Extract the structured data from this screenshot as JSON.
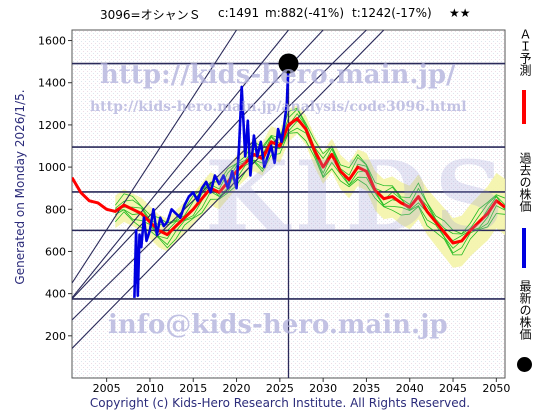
{
  "header": {
    "code": "3096=オシャンＳ",
    "current": "c:1491",
    "min": "m:882(-41%)",
    "target": "t:1242(-17%)",
    "rating": "★★"
  },
  "side_text": "Generated on Monday 2026/1/5.",
  "footer": "Copyright (c) Kids-Hero Research Institute. All Rights Reserved.",
  "watermarks": {
    "url_main": "http://kids-hero.main.jp/",
    "url_code": "http://kids-hero.main.jp/analysis/code3096.html",
    "email": "info@kids-hero.main.jp",
    "big": "KIDS"
  },
  "legend": {
    "ai": "ＡＩ予測",
    "past": "過去の株価",
    "latest": "最新の株価"
  },
  "colors": {
    "ai_line": "#ff0000",
    "price_line": "#0000e0",
    "band_fill": "#f4f4a8",
    "band_lines": "#22bb22",
    "grid": "#2a2a5a",
    "watermark": "#b8b8e0"
  },
  "chart_data": {
    "type": "line",
    "xlim": [
      2001,
      2051
    ],
    "ylim": [
      0,
      1650
    ],
    "x_ticks": [
      2005,
      2010,
      2015,
      2020,
      2025,
      2030,
      2035,
      2040,
      2045,
      2050
    ],
    "y_ticks": [
      200,
      400,
      600,
      800,
      1000,
      1200,
      1400,
      1600
    ],
    "horizontal_levels": [
      1491,
      1095,
      882,
      700,
      375
    ],
    "current_marker": {
      "x": 2026.0,
      "y": 1491
    },
    "vertical_marker_x": 2026.0,
    "diagonal_lines": [
      {
        "x0": 2001,
        "y0": 450,
        "x1": 2020,
        "y1": 1650
      },
      {
        "x0": 2001,
        "y0": 380,
        "x1": 2026,
        "y1": 1650
      },
      {
        "x0": 2001,
        "y0": 375,
        "x1": 2030,
        "y1": 1650
      },
      {
        "x0": 2001,
        "y0": 275,
        "x1": 2035,
        "y1": 1650
      },
      {
        "x0": 2001,
        "y0": 140,
        "x1": 2037,
        "y1": 1650
      }
    ],
    "series": [
      {
        "name": "ＡＩ予測",
        "x": [
          2001,
          2002,
          2003,
          2004,
          2005,
          2006,
          2007,
          2008,
          2009,
          2010,
          2011,
          2012,
          2013,
          2014,
          2015,
          2016,
          2017,
          2018,
          2019,
          2020,
          2021,
          2022,
          2023,
          2024,
          2025,
          2026,
          2027,
          2028,
          2029,
          2030,
          2031,
          2032,
          2033,
          2034,
          2035,
          2036,
          2037,
          2038,
          2039,
          2040,
          2041,
          2042,
          2043,
          2044,
          2045,
          2046,
          2047,
          2048,
          2049,
          2050,
          2051
        ],
        "values": [
          950,
          880,
          840,
          830,
          800,
          790,
          820,
          800,
          780,
          740,
          700,
          680,
          720,
          760,
          800,
          850,
          900,
          880,
          930,
          980,
          1020,
          1060,
          1040,
          1120,
          1100,
          1200,
          1230,
          1180,
          1080,
          1000,
          1060,
          980,
          940,
          1000,
          980,
          890,
          850,
          860,
          830,
          810,
          860,
          790,
          740,
          690,
          640,
          650,
          700,
          740,
          780,
          840,
          810
        ]
      },
      {
        "name": "過去の株価",
        "x": [
          2008.2,
          2008.4,
          2008.6,
          2008.8,
          2009.0,
          2009.3,
          2009.6,
          2010.0,
          2010.4,
          2010.8,
          2011.2,
          2011.6,
          2012.0,
          2012.5,
          2013.0,
          2013.5,
          2014.0,
          2014.5,
          2015.0,
          2015.5,
          2016.0,
          2016.5,
          2017.0,
          2017.5,
          2018.0,
          2018.5,
          2019.0,
          2019.5,
          2020.0,
          2020.3,
          2020.6,
          2021.0,
          2021.3,
          2021.6,
          2022.0,
          2022.4,
          2022.8,
          2023.2,
          2023.6,
          2024.0,
          2024.4,
          2024.8,
          2025.2,
          2025.5,
          2025.8,
          2026.0
        ],
        "values": [
          380,
          700,
          390,
          680,
          620,
          760,
          650,
          700,
          800,
          680,
          760,
          720,
          740,
          800,
          780,
          760,
          820,
          860,
          880,
          840,
          900,
          930,
          880,
          960,
          920,
          960,
          900,
          980,
          900,
          1100,
          1380,
          1050,
          1220,
          960,
          1150,
          1050,
          1120,
          1000,
          1050,
          1100,
          1020,
          1180,
          1120,
          1200,
          1300,
          1491
        ]
      }
    ]
  }
}
